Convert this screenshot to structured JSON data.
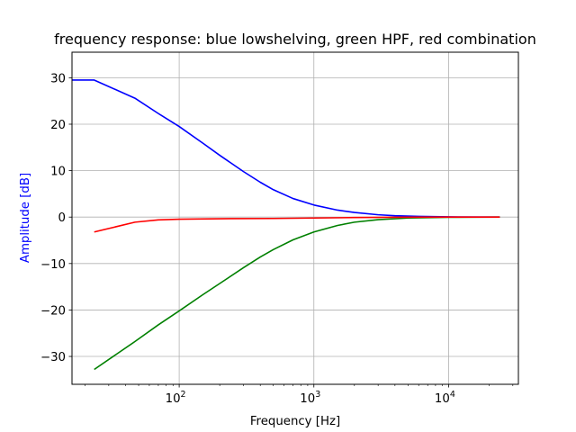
{
  "chart_data": {
    "type": "line",
    "title": "frequency response: blue lowshelving, green HPF, red combination",
    "xlabel": "Frequency [Hz]",
    "ylabel": "Amplitude [dB]",
    "xscale": "log",
    "xlim": [
      16,
      33000
    ],
    "ylim": [
      -36,
      35.5
    ],
    "grid": true,
    "x_major_ticks": [
      100,
      1000,
      10000
    ],
    "x_tick_labels": [
      {
        "base": "10",
        "exp": "2"
      },
      {
        "base": "10",
        "exp": "3"
      },
      {
        "base": "10",
        "exp": "4"
      }
    ],
    "y_ticks": [
      30,
      20,
      10,
      0,
      -10,
      -20,
      -30
    ],
    "y_tick_labels": [
      "30",
      "20",
      "10",
      "0",
      "−10",
      "−20",
      "−30"
    ],
    "series": [
      {
        "color": "#0000ff",
        "x": [
          16,
          23.4,
          46.9,
          70,
          100,
          150,
          200,
          300,
          400,
          500,
          700,
          1000,
          1500,
          2000,
          3000,
          4000,
          6000,
          10000,
          24000
        ],
        "y": [
          29.5,
          29.5,
          25.6,
          22.3,
          19.5,
          15.9,
          13.3,
          9.8,
          7.5,
          5.9,
          4.0,
          2.6,
          1.5,
          1.0,
          0.5,
          0.3,
          0.15,
          0.05,
          0.0
        ]
      },
      {
        "color": "#008000",
        "x": [
          23.4,
          46.9,
          70,
          100,
          150,
          200,
          300,
          400,
          500,
          700,
          1000,
          1500,
          2000,
          3000,
          5000,
          10000,
          24000
        ],
        "y": [
          -32.8,
          -26.8,
          -23.2,
          -20.2,
          -16.7,
          -14.3,
          -10.9,
          -8.6,
          -7.0,
          -4.9,
          -3.2,
          -1.8,
          -1.1,
          -0.55,
          -0.2,
          -0.05,
          0.0
        ]
      },
      {
        "color": "#ff0000",
        "x": [
          23.4,
          46.9,
          70,
          100,
          200,
          500,
          1000,
          2000,
          5000,
          10000,
          24000
        ],
        "y": [
          -3.2,
          -1.1,
          -0.6,
          -0.45,
          -0.35,
          -0.3,
          -0.2,
          -0.1,
          -0.03,
          0.0,
          0.0
        ]
      }
    ],
    "ylabel_color": "#0000ff"
  }
}
